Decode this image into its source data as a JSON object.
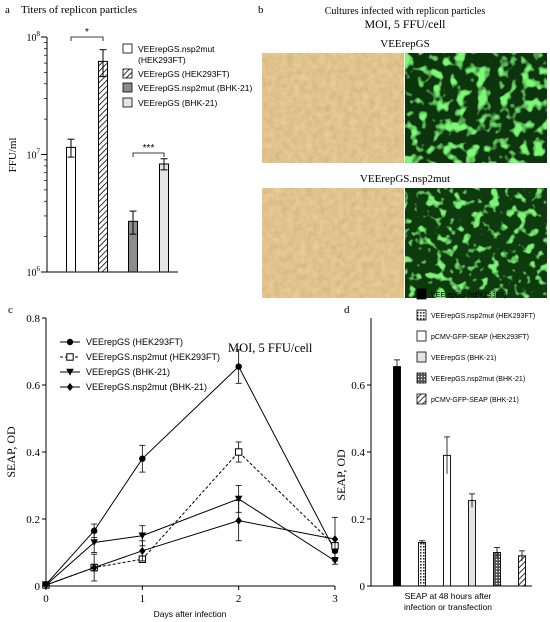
{
  "figure": {
    "colors": {
      "ink": "#000000",
      "cell_bright": "#caa36c",
      "cell_dark": "#7f5c2e",
      "green_bg": "#0f3c0c",
      "green_cells": "#3ff03a",
      "white_bar": "#ffffff",
      "hatched_bar": "#ffffff",
      "dark_gray_bar": "#8c8c8c",
      "light_gray_bar": "#e4e4e4",
      "black_bar": "#000000"
    }
  },
  "chart_data": [
    {
      "id": "a",
      "type": "bar",
      "panel_letter": "a",
      "title": "Titers of replicon particles",
      "ylabel": "FFU/ml",
      "xlabel": "",
      "y_scale": "log",
      "ylim": [
        1000000,
        100000000
      ],
      "y_tick_labels": [
        {
          "value": 1000000,
          "base": "10",
          "exp": "6"
        },
        {
          "value": 10000000,
          "base": "10",
          "exp": "7"
        },
        {
          "value": 100000000,
          "base": "10",
          "exp": "8"
        }
      ],
      "legend_position": "right",
      "series": [
        {
          "name": "VEErepGS.nsp2mut (HEK293FT)",
          "value": 11500000,
          "error": 2000000,
          "fill": "white"
        },
        {
          "name": "VEErepGS (HEK293FT)",
          "value": 62000000,
          "error": 16000000,
          "fill": "hatched"
        },
        {
          "name": "VEErepGS.nsp2mut (BHK-21)",
          "value": 2700000,
          "error": 600000,
          "fill": "dark-gray"
        },
        {
          "name": "VEErepGS (BHK-21)",
          "value": 8300000,
          "error": 900000,
          "fill": "light-gray"
        }
      ],
      "annotations": [
        {
          "label": "*",
          "between": [
            0,
            1
          ]
        },
        {
          "label": "***",
          "between": [
            2,
            3
          ]
        }
      ]
    },
    {
      "id": "c",
      "type": "line",
      "panel_letter": "c",
      "title": "MOI, 5 FFU/cell",
      "xlabel": "Days after infection",
      "ylabel": "SEAP, OD",
      "xlim": [
        0,
        3
      ],
      "ylim": [
        0,
        0.8
      ],
      "x_ticks": [
        0,
        1,
        2,
        3
      ],
      "y_ticks": [
        0,
        0.2,
        0.4,
        0.6,
        0.8
      ],
      "legend_position": "top-left",
      "series": [
        {
          "name": "VEErepGS (HEK293FT)",
          "marker": "circle",
          "dashed": false,
          "x": [
            0,
            0.5,
            1,
            2,
            3
          ],
          "y": [
            0.005,
            0.165,
            0.38,
            0.655,
            0.105
          ],
          "err": [
            0.005,
            0.02,
            0.04,
            0.05,
            0.02
          ]
        },
        {
          "name": "VEErepGS.nsp2mut (HEK293FT)",
          "marker": "square",
          "dashed": true,
          "x": [
            0,
            0.5,
            1,
            2,
            3
          ],
          "y": [
            0.003,
            0.055,
            0.08,
            0.4,
            0.12
          ],
          "err": [
            0.003,
            0.01,
            0.01,
            0.03,
            0.02
          ]
        },
        {
          "name": "VEErepGS (BHK-21)",
          "marker": "triangle-down",
          "dashed": false,
          "x": [
            0,
            0.5,
            1,
            2,
            3
          ],
          "y": [
            0.003,
            0.13,
            0.15,
            0.26,
            0.075
          ],
          "err": [
            0.003,
            0.03,
            0.03,
            0.04,
            0.01
          ]
        },
        {
          "name": "VEErepGS.nsp2mut (BHK-21)",
          "marker": "diamond",
          "dashed": false,
          "x": [
            0,
            0.5,
            1,
            2,
            3
          ],
          "y": [
            0.003,
            0.055,
            0.105,
            0.195,
            0.14
          ],
          "err": [
            0.003,
            0.04,
            0.03,
            0.06,
            0.065
          ]
        }
      ]
    },
    {
      "id": "d",
      "type": "bar",
      "panel_letter": "d",
      "title": "",
      "xlabel": "SEAP at 48 hours after infection or transfection",
      "ylabel": "SEAP, OD",
      "ylim": [
        0,
        0.8
      ],
      "y_ticks": [
        0,
        0.2,
        0.4,
        0.6
      ],
      "legend_position": "top",
      "series": [
        {
          "name": "VEErepGS (HEK293FT)",
          "value": 0.655,
          "error": 0.02,
          "fill": "black"
        },
        {
          "name": "VEErepGS.nsp2mut (HEK293FT)",
          "value": 0.13,
          "error": 0.005,
          "fill": "grid"
        },
        {
          "name": "pCMV-GFP-SEAP (HEK293FT)",
          "value": 0.39,
          "error": 0.055,
          "fill": "white"
        },
        {
          "name": "VEErepGS (BHK-21)",
          "value": 0.255,
          "error": 0.02,
          "fill": "light-gray"
        },
        {
          "name": "VEErepGS.nsp2mut (BHK-21)",
          "value": 0.1,
          "error": 0.015,
          "fill": "dots"
        },
        {
          "name": "pCMV-GFP-SEAP (BHK-21)",
          "value": 0.09,
          "error": 0.015,
          "fill": "hatched"
        }
      ]
    }
  ],
  "panel_b": {
    "letter": "b",
    "title": "Cultures infected with replicon particles",
    "subtitle": "MOI, 5 FFU/cell",
    "rows": [
      {
        "label": "VEErepGS",
        "cell_density": "high"
      },
      {
        "label": "VEErepGS.nsp2mut",
        "cell_density": "low"
      }
    ]
  }
}
